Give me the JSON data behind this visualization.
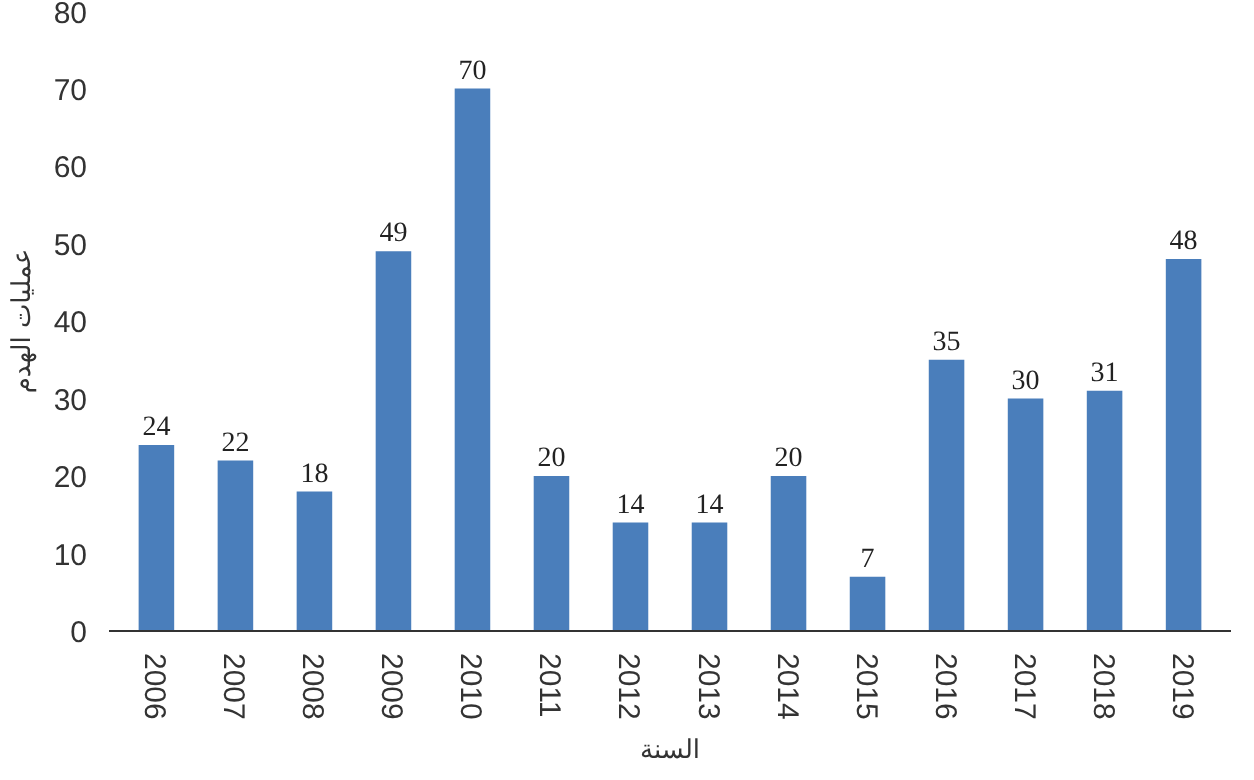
{
  "chart_data": {
    "type": "bar",
    "xlabel": "السنة",
    "ylabel": "عمليات الهدم",
    "categories": [
      "2006",
      "2007",
      "2008",
      "2009",
      "2010",
      "2011",
      "2012",
      "2013",
      "2014",
      "2015",
      "2016",
      "2017",
      "2018",
      "2019"
    ],
    "values": [
      24,
      22,
      18,
      49,
      70,
      20,
      14,
      14,
      20,
      7,
      35,
      30,
      31,
      48
    ],
    "color": "#4a7ebb",
    "ylim": [
      0,
      80
    ],
    "yticks": [
      0,
      10,
      20,
      30,
      40,
      50,
      60,
      70,
      80
    ],
    "data_labels": true,
    "grid": false
  }
}
